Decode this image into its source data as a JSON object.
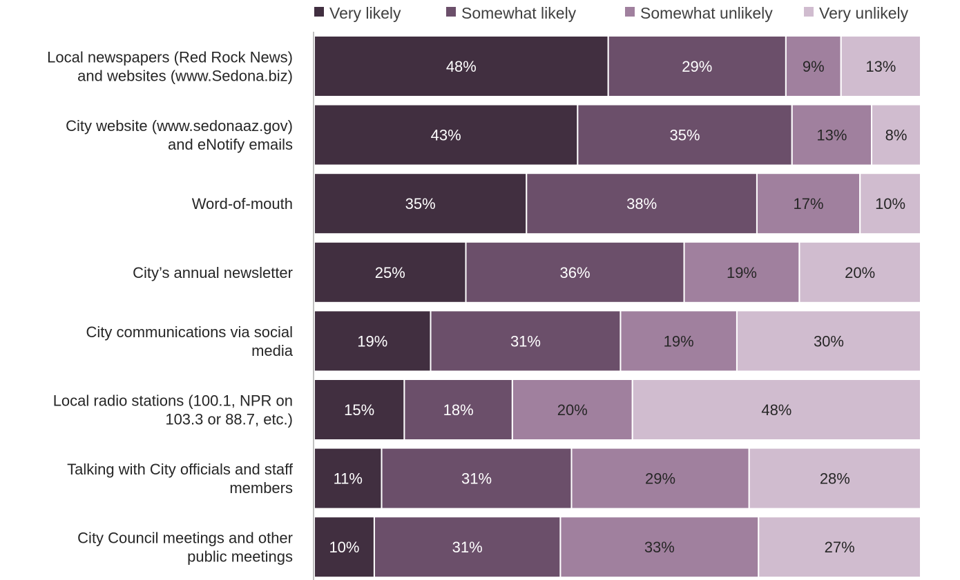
{
  "chart_data": {
    "type": "bar",
    "orientation": "horizontal",
    "stacked": true,
    "title": "",
    "xlabel": "",
    "ylabel": "",
    "xlim": [
      0,
      100
    ],
    "grid": false,
    "legend_position": "top",
    "categories": [
      [
        "Local newspapers (Red Rock News)",
        "and websites (www.Sedona.biz)"
      ],
      [
        "City website (www.sedonaaz.gov)",
        "and eNotify emails"
      ],
      [
        "Word-of-mouth"
      ],
      [
        "City’s annual newsletter"
      ],
      [
        "City communications via social",
        "media"
      ],
      [
        "Local radio stations (100.1, NPR on",
        "103.3 or 88.7, etc.)"
      ],
      [
        "Talking with City officials and staff",
        "members"
      ],
      [
        "City Council meetings and other",
        "public meetings"
      ]
    ],
    "series": [
      {
        "name": "Very likely",
        "color": "#412f40",
        "label_color": "#ffffff",
        "values": [
          48,
          43,
          35,
          25,
          19,
          15,
          11,
          10
        ]
      },
      {
        "name": "Somewhat likely",
        "color": "#6b4f6a",
        "label_color": "#ffffff",
        "values": [
          29,
          35,
          38,
          36,
          31,
          18,
          31,
          31
        ]
      },
      {
        "name": "Somewhat unlikely",
        "color": "#a0809e",
        "label_color": "#262626",
        "values": [
          9,
          13,
          17,
          19,
          19,
          20,
          29,
          33
        ]
      },
      {
        "name": "Very unlikely",
        "color": "#d0bccf",
        "label_color": "#262626",
        "values": [
          13,
          8,
          10,
          20,
          30,
          48,
          28,
          27
        ]
      }
    ],
    "value_suffix": "%"
  }
}
